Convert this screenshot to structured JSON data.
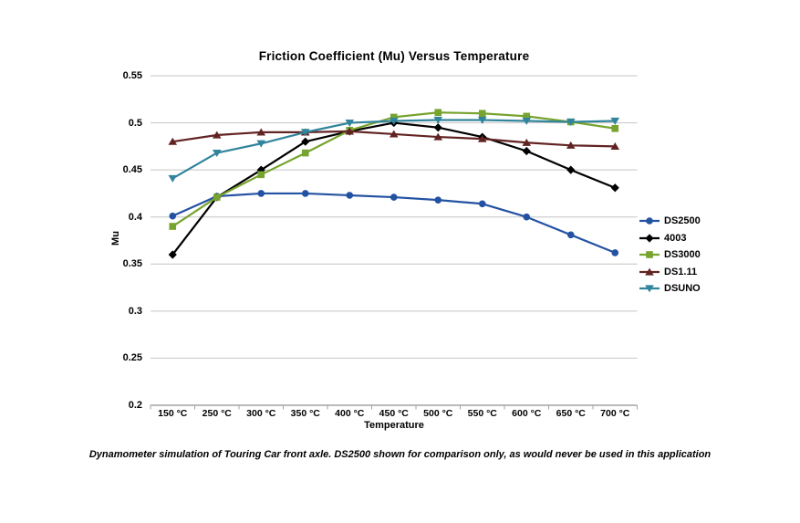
{
  "caption": {
    "text": "Dynamometer simulation of Touring Car front axle. DS2500 shown for comparison only, as would never be used in this application"
  },
  "colors": {
    "background": "#FFFFFF",
    "text": "#000000",
    "gridline": "#C4C4C4",
    "axis": "#A3A3A3",
    "ds2500_blue": "#2352A2",
    "f4003_black": "#000000",
    "ds3000_green": "#77A32F",
    "ds111_maroon": "#622423",
    "dsuno_teal": "#31849B"
  },
  "chart_data": {
    "type": "line",
    "title": "Friction Coefficient (Mu) Versus Temperature",
    "xlabel": "Temperature",
    "ylabel": "Mu",
    "ylim": [
      0.2,
      0.55
    ],
    "y_ticks": [
      0.55,
      0.5,
      0.45,
      0.4,
      0.35,
      0.3,
      0.25,
      0.2
    ],
    "grid": "horizontal",
    "legend_position": "right",
    "categories": [
      "150 °C",
      "250 °C",
      "300 °C",
      "350 °C",
      "400 °C",
      "450 °C",
      "500 °C",
      "550 °C",
      "600 °C",
      "650 °C",
      "700 °C"
    ],
    "series": [
      {
        "name": "DS2500",
        "color": "#2352A2",
        "marker": "circle",
        "values": [
          0.401,
          0.422,
          0.425,
          0.425,
          0.423,
          0.421,
          0.418,
          0.414,
          0.4,
          0.381,
          0.362
        ]
      },
      {
        "name": "4003",
        "color": "#000000",
        "marker": "diamond",
        "values": [
          0.36,
          0.421,
          0.45,
          0.48,
          0.491,
          0.5,
          0.495,
          0.485,
          0.47,
          0.45,
          0.431
        ]
      },
      {
        "name": "DS3000",
        "color": "#77A32F",
        "marker": "square",
        "values": [
          0.39,
          0.421,
          0.445,
          0.468,
          0.492,
          0.506,
          0.511,
          0.51,
          0.507,
          0.501,
          0.494
        ]
      },
      {
        "name": "DS1.11",
        "color": "#622423",
        "marker": "triangle-up",
        "values": [
          0.48,
          0.487,
          0.49,
          0.49,
          0.491,
          0.488,
          0.485,
          0.483,
          0.479,
          0.476,
          0.475
        ]
      },
      {
        "name": "DSUNO",
        "color": "#31849B",
        "marker": "triangle-down",
        "values": [
          0.441,
          0.468,
          0.478,
          0.49,
          0.5,
          0.502,
          0.503,
          0.503,
          0.502,
          0.501,
          0.502
        ]
      }
    ]
  }
}
